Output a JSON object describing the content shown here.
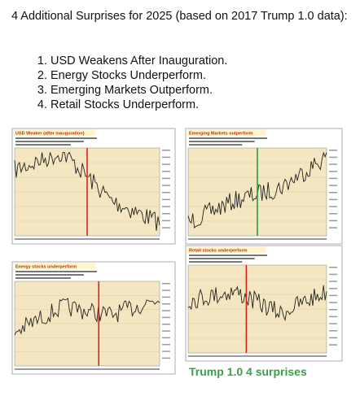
{
  "header": {
    "title": "4 Additional Surprises for 2025 (based on 2017 Trump 1.0 data):"
  },
  "list": {
    "items": [
      "USD Weakens After Inauguration.",
      "Energy Stocks Underperform.",
      "Emerging Markets Outperform.",
      "Retail Stocks Underperform."
    ]
  },
  "charts": [
    {
      "label": "USD Weaker (after inauguration)"
    },
    {
      "label": "Emerging Markets outperform"
    },
    {
      "label": "Energy stocks underperform"
    },
    {
      "label": "Retail stocks underperform"
    }
  ],
  "caption": "Trump 1.0 4 surprises"
}
